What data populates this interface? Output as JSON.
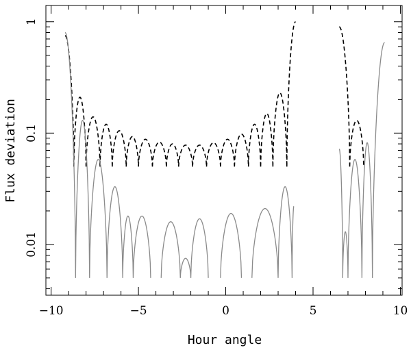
{
  "chart_data": {
    "type": "line",
    "xlabel": "Hour angle",
    "ylabel": "Flux deviation",
    "xlim": [
      -10.3,
      10.1
    ],
    "ylim": [
      0.0035,
      1.4
    ],
    "y_scale": "log",
    "x_ticks": [
      -10,
      -5,
      0,
      5,
      10
    ],
    "x_tick_labels": [
      "−10",
      "−5",
      "0",
      "5",
      "10"
    ],
    "y_ticks": [
      0.01,
      0.1,
      1
    ],
    "y_tick_labels": [
      "0.01",
      "0.1",
      "1"
    ],
    "grid": false,
    "legend": "none",
    "series": [
      {
        "style": "dashed",
        "color": "#000000",
        "segments": [
          {
            "floor": 0.05,
            "arches": [
              {
                "x0": -9.2,
                "x1": -8.7,
                "peak": 0.75,
                "peak_at": -9.2
              },
              {
                "x0": -8.7,
                "x1": -8.0,
                "peak": 0.21
              },
              {
                "x0": -8.0,
                "x1": -7.2,
                "peak": 0.14
              },
              {
                "x0": -7.2,
                "x1": -6.5,
                "peak": 0.12
              },
              {
                "x0": -6.5,
                "x1": -5.7,
                "peak": 0.105
              },
              {
                "x0": -5.7,
                "x1": -5.0,
                "peak": 0.093
              },
              {
                "x0": -5.0,
                "x1": -4.2,
                "peak": 0.088
              },
              {
                "x0": -4.2,
                "x1": -3.4,
                "peak": 0.083
              },
              {
                "x0": -3.4,
                "x1": -2.7,
                "peak": 0.08
              },
              {
                "x0": -2.7,
                "x1": -1.9,
                "peak": 0.078
              },
              {
                "x0": -1.9,
                "x1": -1.1,
                "peak": 0.078
              },
              {
                "x0": -1.1,
                "x1": -0.3,
                "peak": 0.082
              },
              {
                "x0": -0.3,
                "x1": 0.5,
                "peak": 0.088
              },
              {
                "x0": 0.5,
                "x1": 1.3,
                "peak": 0.098
              },
              {
                "x0": 1.3,
                "x1": 2.0,
                "peak": 0.12
              },
              {
                "x0": 2.0,
                "x1": 2.7,
                "peak": 0.15
              },
              {
                "x0": 2.7,
                "x1": 3.5,
                "peak": 0.23
              },
              {
                "x0": 3.5,
                "x1": 4.0,
                "peak": 1.0,
                "peak_at": 4.0
              }
            ]
          },
          {
            "floor": 0.05,
            "arches": [
              {
                "x0": 6.5,
                "x1": 7.1,
                "peak": 0.9,
                "peak_at": 6.5
              },
              {
                "x0": 7.1,
                "x1": 7.9,
                "peak": 0.13
              }
            ]
          }
        ]
      },
      {
        "style": "solid",
        "color": "#8a8a8a",
        "segments": [
          {
            "floor": 0.005,
            "arches": [
              {
                "x0": -9.2,
                "x1": -8.6,
                "peak": 0.8,
                "peak_at": -9.2
              },
              {
                "x0": -8.6,
                "x1": -7.8,
                "peak": 0.13
              },
              {
                "x0": -7.8,
                "x1": -6.8,
                "peak": 0.058
              },
              {
                "x0": -6.8,
                "x1": -5.9,
                "peak": 0.033
              },
              {
                "x0": -5.9,
                "x1": -5.3,
                "peak": 0.018
              },
              {
                "x0": -5.3,
                "x1": -4.3,
                "peak": 0.018
              },
              {
                "x0": -3.7,
                "x1": -2.6,
                "peak": 0.016
              },
              {
                "x0": -2.6,
                "x1": -2.0,
                "peak": 0.0075
              },
              {
                "x0": -2.0,
                "x1": -1.0,
                "peak": 0.017
              },
              {
                "x0": -0.3,
                "x1": 0.9,
                "peak": 0.019
              },
              {
                "x0": 1.5,
                "x1": 3.0,
                "peak": 0.021
              },
              {
                "x0": 3.0,
                "x1": 3.8,
                "peak": 0.033
              },
              {
                "x0": 3.8,
                "x1": 3.9,
                "peak": 0.022,
                "peak_at": 3.9
              }
            ]
          },
          {
            "floor": 0.005,
            "arches": [
              {
                "x0": 6.5,
                "x1": 6.7,
                "peak": 0.072,
                "peak_at": 6.5
              },
              {
                "x0": 6.7,
                "x1": 7.0,
                "peak": 0.013
              },
              {
                "x0": 7.0,
                "x1": 7.8,
                "peak": 0.058
              },
              {
                "x0": 7.8,
                "x1": 8.4,
                "peak": 0.082
              },
              {
                "x0": 8.4,
                "x1": 9.1,
                "peak": 0.65,
                "peak_at": 9.1
              }
            ]
          }
        ]
      }
    ]
  }
}
